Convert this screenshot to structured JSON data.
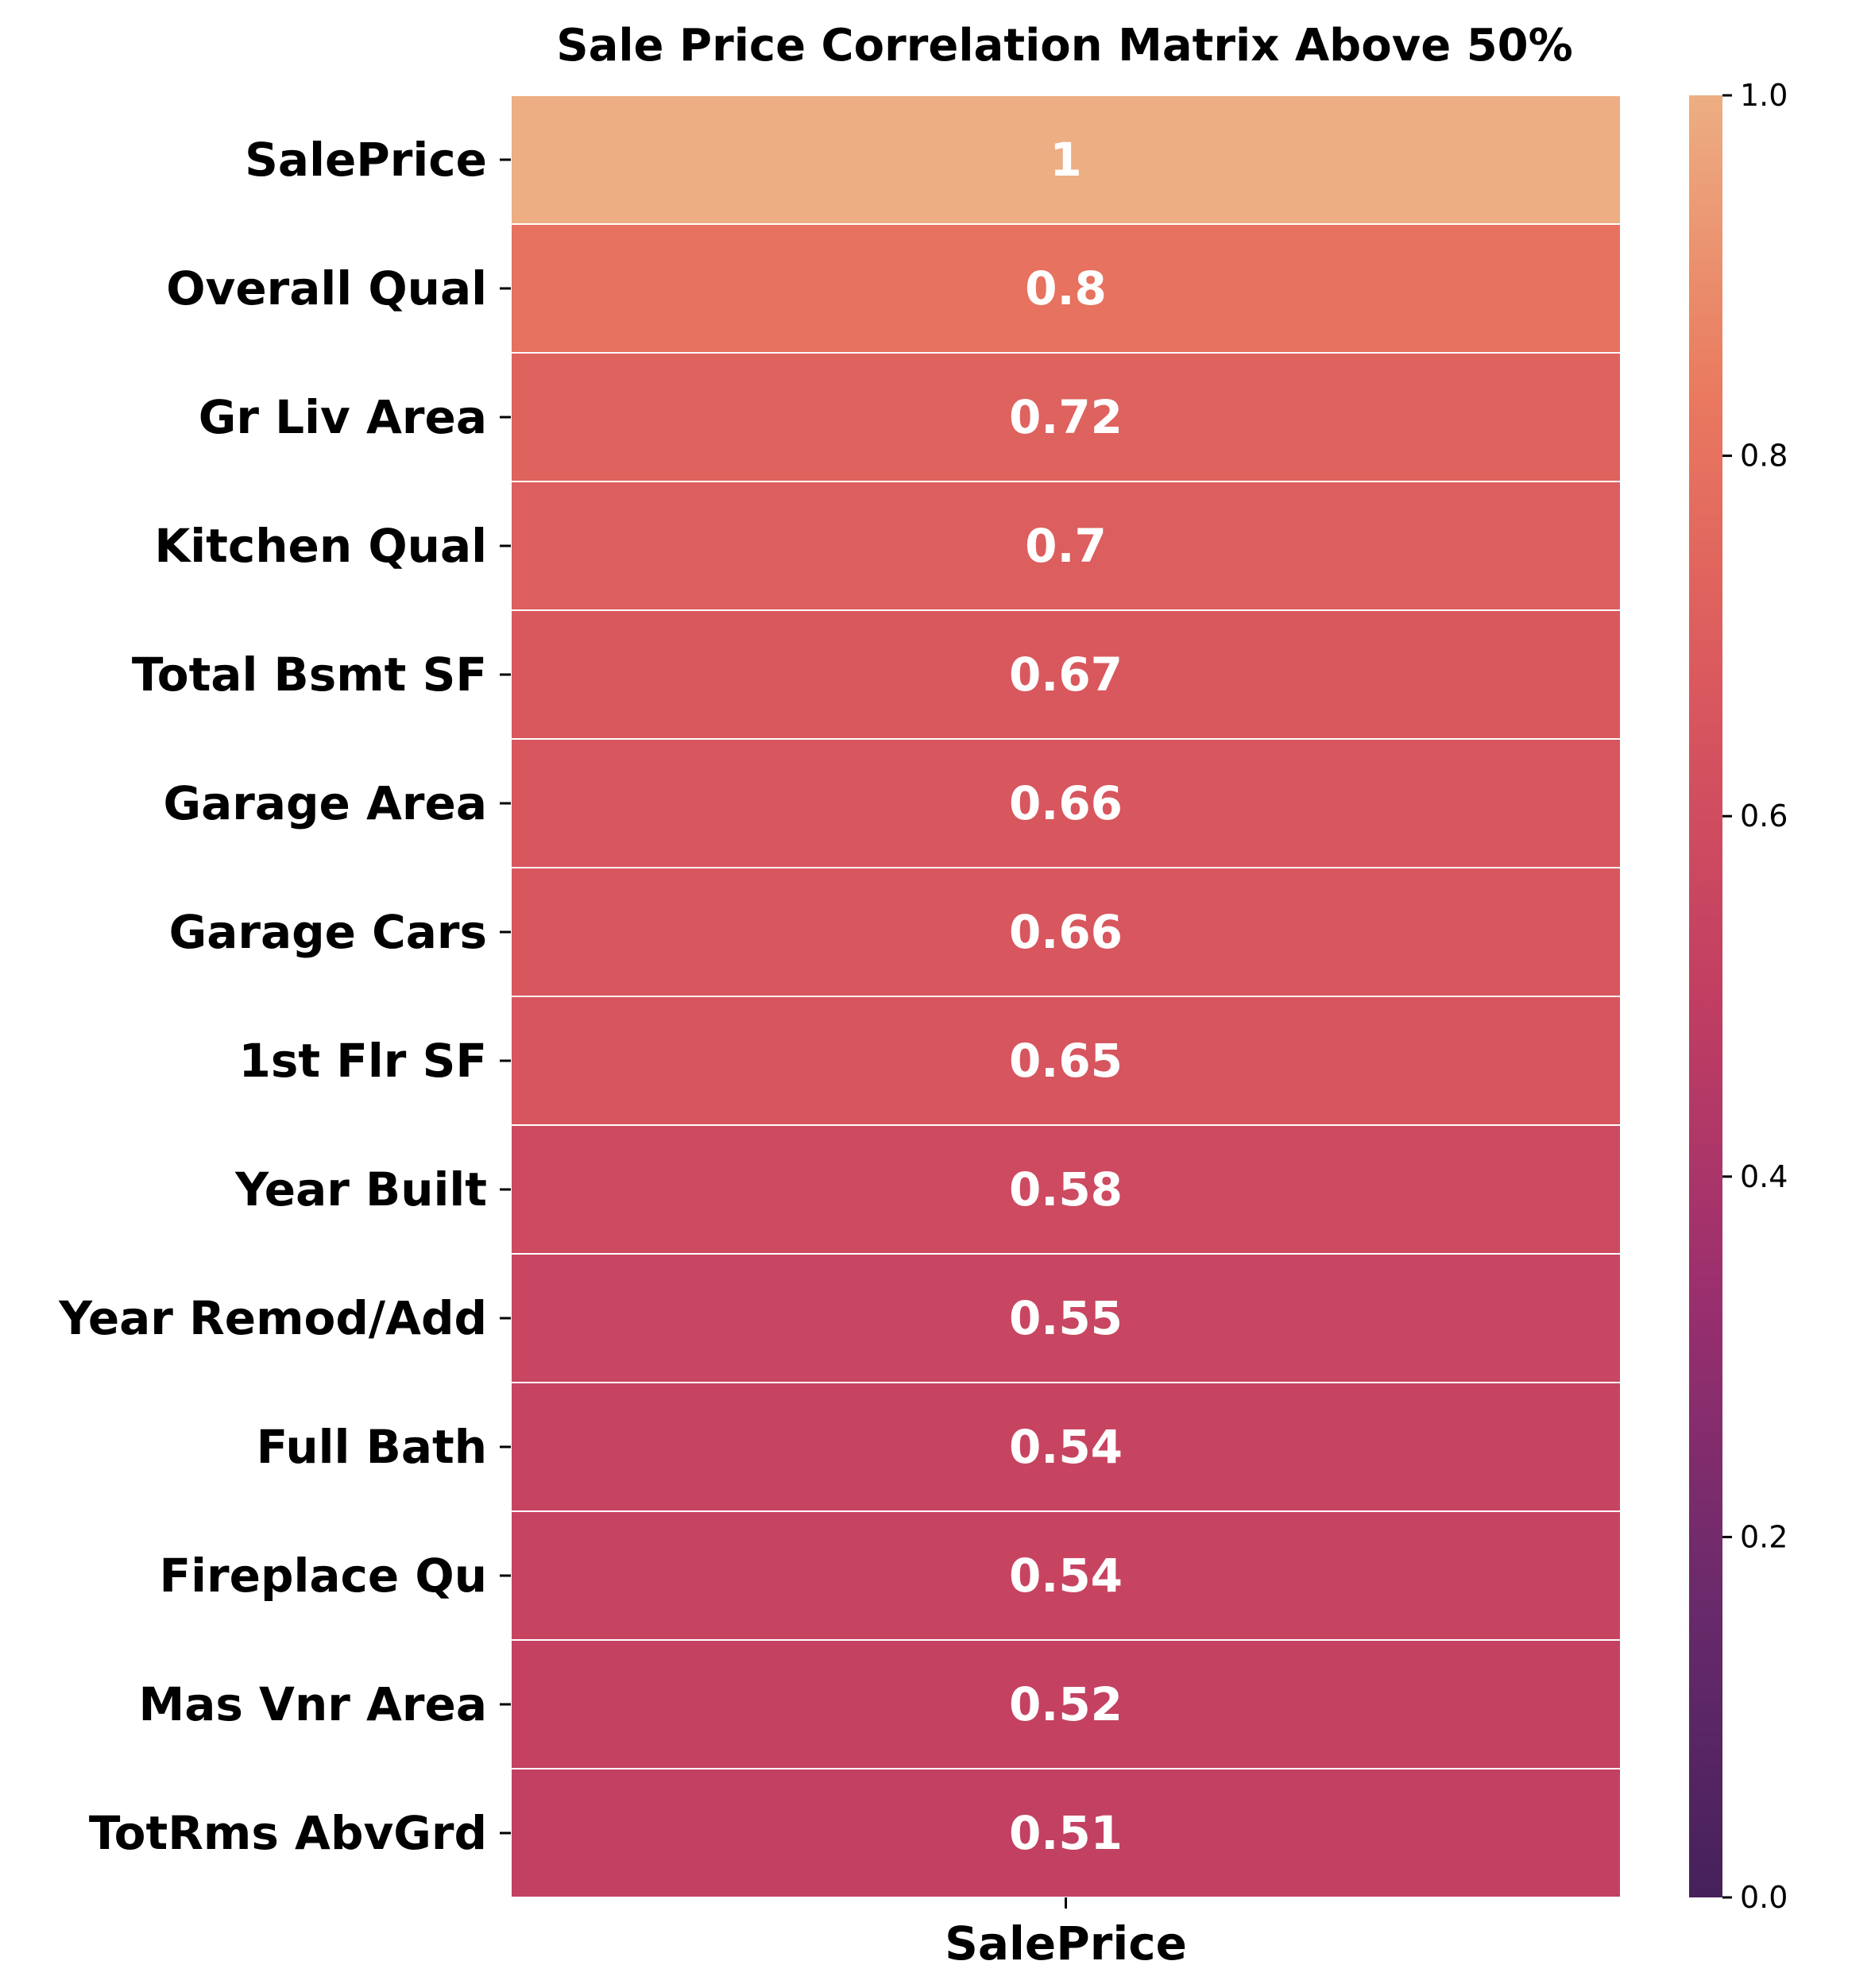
{
  "chart_data": {
    "type": "heatmap",
    "title": "Sale Price Correlation Matrix Above 50%",
    "columns": [
      "SalePrice"
    ],
    "rows": [
      "SalePrice",
      "Overall Qual",
      "Gr Liv Area",
      "Kitchen Qual",
      "Total Bsmt SF",
      "Garage Area",
      "Garage Cars",
      "1st Flr SF",
      "Year Built",
      "Year Remod/Add",
      "Full Bath",
      "Fireplace Qu",
      "Mas Vnr Area",
      "TotRms AbvGrd"
    ],
    "values": [
      1.0,
      0.8,
      0.72,
      0.7,
      0.67,
      0.66,
      0.66,
      0.65,
      0.58,
      0.55,
      0.54,
      0.54,
      0.52,
      0.51
    ],
    "value_labels": [
      "1",
      "0.8",
      "0.72",
      "0.7",
      "0.67",
      "0.66",
      "0.66",
      "0.65",
      "0.58",
      "0.55",
      "0.54",
      "0.54",
      "0.52",
      "0.51"
    ],
    "colorbar": {
      "vmin": 0.0,
      "vmax": 1.0,
      "ticks": [
        0.0,
        0.2,
        0.4,
        0.6,
        0.8,
        1.0
      ],
      "tick_labels": [
        "0.0",
        "0.2",
        "0.4",
        "0.6",
        "0.8",
        "1.0"
      ],
      "colormap": "flare_r",
      "colors": [
        "#45215a",
        "#6a2a6b",
        "#9a2f6e",
        "#c13e62",
        "#d9575e",
        "#e9795f",
        "#edae83"
      ]
    }
  }
}
